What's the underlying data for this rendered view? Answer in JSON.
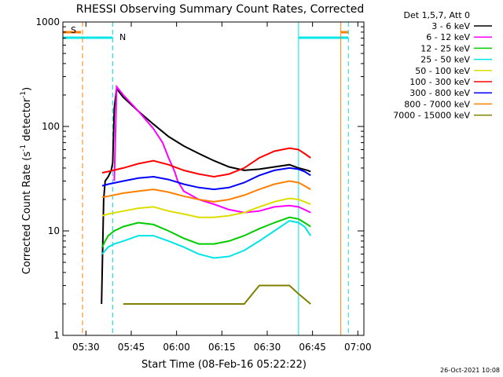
{
  "chart_data": {
    "type": "line",
    "title": "RHESSI Observing Summary Count Rates, Corrected",
    "xlabel": "Start Time (08-Feb-16 05:22:22)",
    "ylabel_main": "Corrected Count Rate (s",
    "ylabel_sup1": "-1",
    "ylabel_mid": " detector",
    "ylabel_sup2": "-1",
    "ylabel_end": ")",
    "yscale": "log",
    "ylim": [
      1,
      1000
    ],
    "xlim": [
      "05:22:22",
      "07:02:00"
    ],
    "x_ticks": [
      "05:30",
      "05:45",
      "06:00",
      "06:15",
      "06:30",
      "06:45",
      "07:00"
    ],
    "x_tick_minutes": [
      7.63,
      22.63,
      37.63,
      52.63,
      67.63,
      82.63,
      97.63
    ],
    "y_ticks": [
      "1",
      "10",
      "100",
      "1000"
    ],
    "y_tick_values": [
      1,
      10,
      100,
      1000
    ],
    "legend_title": "Det 1,5,7, Att 0",
    "legend_position": "top-right",
    "flag_labels": {
      "saa": "S",
      "night": "N"
    },
    "flags": {
      "saa_bar_minutes": [
        [
          0,
          6
        ],
        [
          92,
          94.5
        ]
      ],
      "night_bar_minutes": [
        [
          0,
          16.5
        ],
        [
          78,
          94.5
        ]
      ],
      "saa_lines_minutes": [
        6.5,
        92
      ],
      "night_lines_minutes": [
        16.5,
        94.5
      ],
      "solid_lines_minutes": [
        0,
        78
      ]
    },
    "series": [
      {
        "name": "3 - 6 keV",
        "color": "#000000",
        "points": [
          [
            12.8,
            2
          ],
          [
            13.5,
            20
          ],
          [
            14,
            30
          ],
          [
            15,
            33
          ],
          [
            16,
            38
          ],
          [
            16.5,
            45
          ],
          [
            17,
            150
          ],
          [
            17.8,
            230
          ],
          [
            20,
            190
          ],
          [
            25,
            140
          ],
          [
            30,
            105
          ],
          [
            35,
            80
          ],
          [
            40,
            65
          ],
          [
            45,
            55
          ],
          [
            50,
            47
          ],
          [
            55,
            41
          ],
          [
            60,
            38
          ],
          [
            65,
            39
          ],
          [
            70,
            41
          ],
          [
            75,
            43
          ],
          [
            78,
            40
          ],
          [
            81,
            38
          ],
          [
            82,
            37
          ]
        ]
      },
      {
        "name": "6 - 12 keV",
        "color": "#ff00ff",
        "points": [
          [
            17,
            30
          ],
          [
            17.8,
            240
          ],
          [
            20,
            200
          ],
          [
            25,
            140
          ],
          [
            30,
            95
          ],
          [
            33,
            70
          ],
          [
            35,
            50
          ],
          [
            37,
            37
          ],
          [
            38,
            30
          ],
          [
            40,
            24
          ],
          [
            45,
            20
          ],
          [
            50,
            18
          ],
          [
            55,
            16
          ],
          [
            60,
            15
          ],
          [
            65,
            15.5
          ],
          [
            70,
            17
          ],
          [
            75,
            17.5
          ],
          [
            78,
            17
          ],
          [
            80,
            16
          ],
          [
            82,
            15
          ]
        ]
      },
      {
        "name": "12 - 25 keV",
        "color": "#00cc00",
        "points": [
          [
            13,
            7
          ],
          [
            14,
            8
          ],
          [
            15,
            9
          ],
          [
            17,
            10
          ],
          [
            20,
            11
          ],
          [
            25,
            12
          ],
          [
            30,
            11.5
          ],
          [
            35,
            10
          ],
          [
            40,
            8.5
          ],
          [
            45,
            7.5
          ],
          [
            50,
            7.5
          ],
          [
            55,
            8
          ],
          [
            60,
            9
          ],
          [
            65,
            10.5
          ],
          [
            70,
            12
          ],
          [
            75,
            13.5
          ],
          [
            78,
            13
          ],
          [
            80,
            12
          ],
          [
            82,
            11
          ]
        ]
      },
      {
        "name": "25 - 50 keV",
        "color": "#00e5e5",
        "points": [
          [
            13,
            6
          ],
          [
            14,
            6.5
          ],
          [
            15,
            7
          ],
          [
            17,
            7.5
          ],
          [
            20,
            8
          ],
          [
            25,
            9
          ],
          [
            30,
            9
          ],
          [
            35,
            8
          ],
          [
            40,
            7
          ],
          [
            45,
            6
          ],
          [
            50,
            5.5
          ],
          [
            55,
            5.7
          ],
          [
            60,
            6.5
          ],
          [
            65,
            8
          ],
          [
            70,
            10
          ],
          [
            75,
            12.5
          ],
          [
            78,
            12
          ],
          [
            80,
            11
          ],
          [
            82,
            9
          ]
        ]
      },
      {
        "name": "50 - 100 keV",
        "color": "#dddd00",
        "points": [
          [
            13,
            14
          ],
          [
            15,
            14.5
          ],
          [
            20,
            15.5
          ],
          [
            25,
            16.5
          ],
          [
            30,
            17
          ],
          [
            35,
            15.5
          ],
          [
            40,
            14.5
          ],
          [
            45,
            13.5
          ],
          [
            50,
            13.5
          ],
          [
            55,
            14
          ],
          [
            60,
            15
          ],
          [
            65,
            17
          ],
          [
            70,
            19
          ],
          [
            75,
            20.5
          ],
          [
            78,
            20
          ],
          [
            80,
            19
          ],
          [
            82,
            18
          ]
        ]
      },
      {
        "name": "100 - 300 keV",
        "color": "#ff0000",
        "points": [
          [
            13,
            36
          ],
          [
            15,
            37
          ],
          [
            20,
            40
          ],
          [
            25,
            44
          ],
          [
            30,
            47
          ],
          [
            35,
            43
          ],
          [
            40,
            38
          ],
          [
            45,
            35
          ],
          [
            50,
            33
          ],
          [
            55,
            35
          ],
          [
            60,
            40
          ],
          [
            65,
            50
          ],
          [
            70,
            58
          ],
          [
            75,
            62
          ],
          [
            78,
            60
          ],
          [
            80,
            55
          ],
          [
            82,
            50
          ]
        ]
      },
      {
        "name": "300 - 800 keV",
        "color": "#0000ff",
        "points": [
          [
            13,
            27
          ],
          [
            15,
            28
          ],
          [
            20,
            30
          ],
          [
            25,
            32
          ],
          [
            30,
            33
          ],
          [
            35,
            31
          ],
          [
            40,
            28
          ],
          [
            45,
            26
          ],
          [
            50,
            25
          ],
          [
            55,
            26
          ],
          [
            60,
            29
          ],
          [
            65,
            34
          ],
          [
            70,
            38
          ],
          [
            75,
            40
          ],
          [
            78,
            39
          ],
          [
            80,
            37
          ],
          [
            82,
            34
          ]
        ]
      },
      {
        "name": "800 - 7000 keV",
        "color": "#ff8000",
        "points": [
          [
            13,
            21
          ],
          [
            15,
            21.5
          ],
          [
            20,
            23
          ],
          [
            25,
            24
          ],
          [
            30,
            25
          ],
          [
            35,
            23.5
          ],
          [
            40,
            21.5
          ],
          [
            45,
            20
          ],
          [
            50,
            19
          ],
          [
            55,
            20
          ],
          [
            60,
            22
          ],
          [
            65,
            25
          ],
          [
            70,
            28
          ],
          [
            75,
            30
          ],
          [
            78,
            29
          ],
          [
            80,
            27
          ],
          [
            82,
            25
          ]
        ]
      },
      {
        "name": "7000 - 15000 keV",
        "color": "#808000",
        "points": [
          [
            20,
            2
          ],
          [
            30,
            2
          ],
          [
            40,
            2
          ],
          [
            50,
            2
          ],
          [
            60,
            2
          ],
          [
            65,
            3
          ],
          [
            70,
            3
          ],
          [
            75,
            3
          ],
          [
            78,
            2.5
          ],
          [
            82,
            2
          ]
        ]
      }
    ]
  },
  "footer": {
    "timestamp": "26-Oct-2021 10:08"
  }
}
